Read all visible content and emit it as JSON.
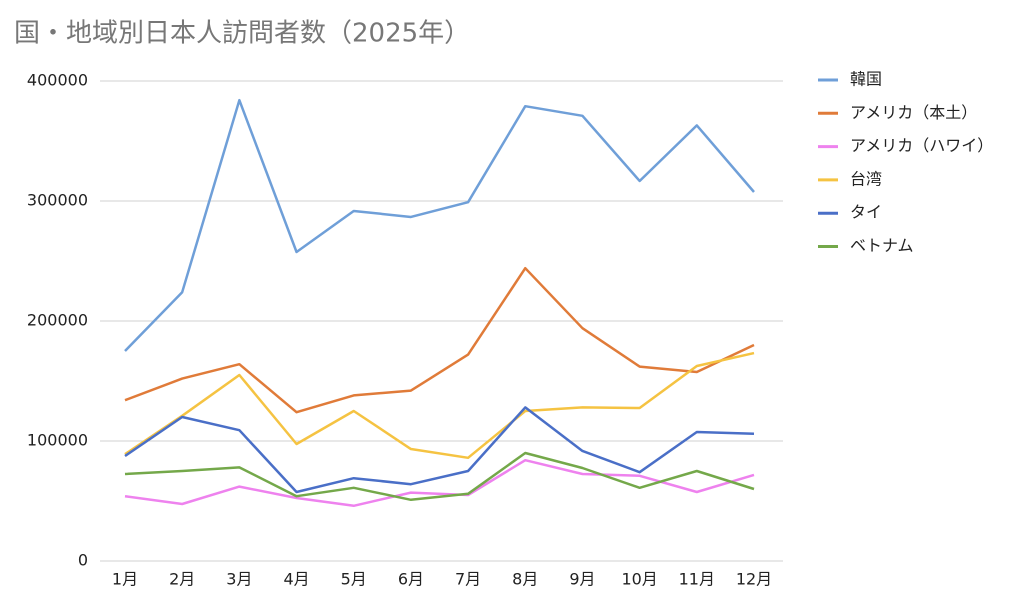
{
  "chart_data": {
    "type": "line",
    "title": "国・地域別日本人訪問者数（2025年）",
    "categories": [
      "1月",
      "2月",
      "3月",
      "4月",
      "5月",
      "6月",
      "7月",
      "8月",
      "9月",
      "10月",
      "11月",
      "12月"
    ],
    "series": [
      {
        "name": "韓国",
        "color": "#6f9fd8",
        "values": [
          175000,
          224000,
          384000,
          257500,
          291700,
          286700,
          299000,
          379000,
          371000,
          316700,
          363000,
          307500
        ]
      },
      {
        "name": "アメリカ（本土）",
        "color": "#e07b39",
        "values": [
          134000,
          152000,
          164000,
          124000,
          138000,
          142000,
          172000,
          244000,
          194000,
          162000,
          157500,
          180000
        ]
      },
      {
        "name": "アメリカ（ハワイ）",
        "color": "#ee82ee",
        "values": [
          54000,
          47500,
          62000,
          52500,
          46000,
          57000,
          55000,
          84000,
          72500,
          71000,
          57500,
          71700
        ]
      },
      {
        "name": "台湾",
        "color": "#f5c342",
        "values": [
          89000,
          121000,
          155000,
          97500,
          125000,
          93300,
          86000,
          125000,
          128000,
          127500,
          162500,
          173300
        ]
      },
      {
        "name": "タイ",
        "color": "#4a6fc7",
        "values": [
          87500,
          120000,
          109000,
          57500,
          69000,
          64000,
          75000,
          128000,
          91700,
          74000,
          107500,
          106000
        ]
      },
      {
        "name": "ベトナム",
        "color": "#74a84a",
        "values": [
          72500,
          75000,
          78000,
          54000,
          61000,
          51000,
          56000,
          90000,
          77500,
          61000,
          75000,
          60000
        ]
      }
    ],
    "ylim": [
      0,
      400000
    ],
    "yticks": [
      0,
      100000,
      200000,
      300000,
      400000
    ],
    "grid": true,
    "legend": "right"
  }
}
